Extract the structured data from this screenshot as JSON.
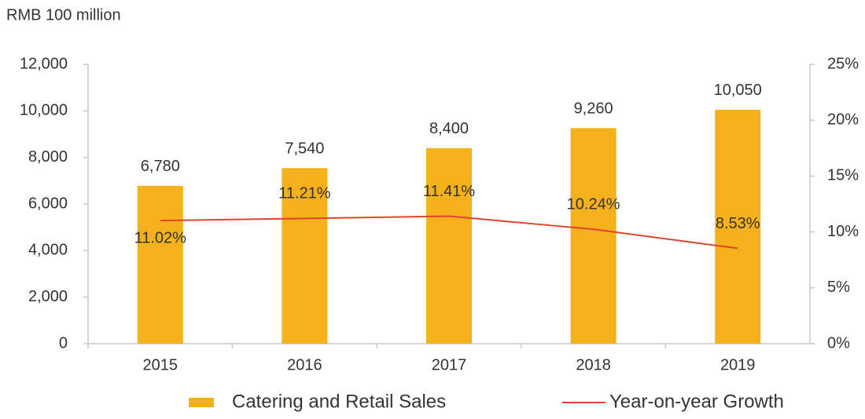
{
  "chart_data": {
    "type": "bar",
    "y_axis_label": "RMB 100 million",
    "categories": [
      "2015",
      "2016",
      "2017",
      "2018",
      "2019"
    ],
    "series": [
      {
        "name": "Catering and Retail Sales",
        "type": "bar",
        "color": "#f5b11c",
        "values": [
          6780,
          7540,
          8400,
          9260,
          10050
        ],
        "value_labels": [
          "6,780",
          "7,540",
          "8,400",
          "9,260",
          "10,050"
        ]
      },
      {
        "name": "Year-on-year Growth",
        "type": "line",
        "axis": "y2",
        "color": "#e0442c",
        "values": [
          11.02,
          11.21,
          11.41,
          10.24,
          8.53
        ],
        "value_labels": [
          "11.02%",
          "11.21%",
          "11.41%",
          "10.24%",
          "8.53%"
        ]
      }
    ],
    "ylim": [
      0,
      12000
    ],
    "yticks": [
      0,
      {
        "value": 2000,
        "label": "2,000"
      },
      {
        "value": 4000,
        "label": "4,000"
      },
      {
        "value": 6000,
        "label": "6,000"
      },
      {
        "value": 8000,
        "label": "8,000"
      },
      {
        "value": 10000,
        "label": "10,000"
      },
      {
        "value": 12000,
        "label": "12,000"
      }
    ],
    "y2lim": [
      0,
      25
    ],
    "y2ticks": [
      {
        "value": 0,
        "label": "0%"
      },
      {
        "value": 5,
        "label": "5%"
      },
      {
        "value": 10,
        "label": "10%"
      },
      {
        "value": 15,
        "label": "15%"
      },
      {
        "value": 20,
        "label": "20%"
      },
      {
        "value": 25,
        "label": "25%"
      }
    ],
    "grid": false,
    "legend": "bottom"
  }
}
